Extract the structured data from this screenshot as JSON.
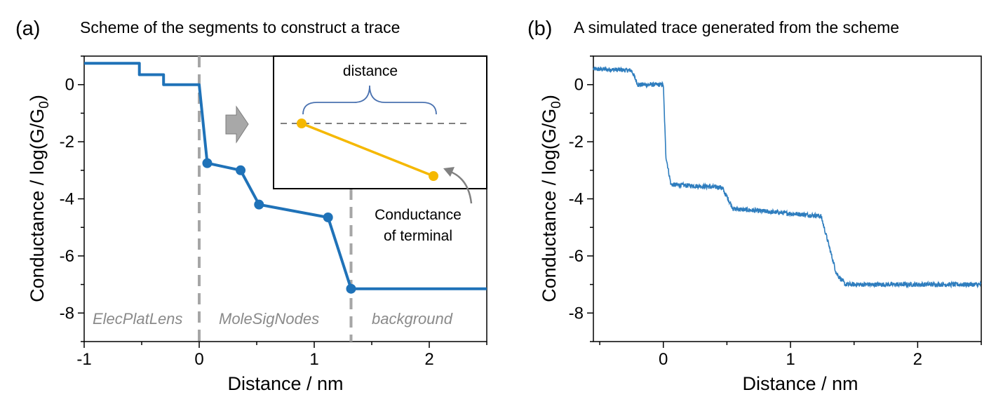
{
  "chart_data": [
    {
      "type": "line",
      "panel_label": "(a)",
      "title": "Scheme of the segments to construct a trace",
      "xlabel": "Distance / nm",
      "ylabel_main": "Conductance / log(G/G",
      "ylabel_sub": "0",
      "ylabel_end": ")",
      "xlim": [
        -1,
        2.5
      ],
      "ylim": [
        -9,
        1
      ],
      "xticks": [
        -1,
        0,
        1,
        2
      ],
      "yticks": [
        0,
        -2,
        -4,
        -6,
        -8
      ],
      "series": [
        {
          "color": "#1f72b8",
          "x": [
            -1.0,
            -0.52,
            -0.52,
            -0.31,
            -0.31,
            0.0,
            0.0,
            0.07,
            0.36,
            0.52,
            1.12,
            1.32,
            2.5
          ],
          "y": [
            0.75,
            0.75,
            0.35,
            0.35,
            0.0,
            0.0,
            0.0,
            -2.75,
            -3.0,
            -4.2,
            -4.65,
            -7.15,
            -7.15
          ]
        }
      ],
      "markers": {
        "x": [
          0.07,
          0.36,
          0.52,
          1.12,
          1.32
        ],
        "y": [
          -2.75,
          -3.0,
          -4.2,
          -4.65,
          -7.15
        ]
      },
      "dividers_x": [
        0.0,
        1.32
      ],
      "region_labels": [
        "ElecPlatLens",
        "MoleSigNodes",
        "background"
      ],
      "inset": {
        "label": "distance",
        "line_color": "#f5b800"
      },
      "annotation": [
        "Conductance",
        "of terminal"
      ]
    },
    {
      "type": "line",
      "panel_label": "(b)",
      "title": "A simulated trace generated from the scheme",
      "xlabel": "Distance / nm",
      "ylabel_main": "Conductance / log(G/G",
      "ylabel_sub": "0",
      "ylabel_end": ")",
      "xlim": [
        -0.55,
        2.5
      ],
      "ylim": [
        -9,
        1
      ],
      "xticks": [
        0,
        1,
        2
      ],
      "yticks": [
        0,
        -2,
        -4,
        -6,
        -8
      ],
      "series": [
        {
          "color": "#2e7dbe",
          "profile": [
            [
              -0.55,
              0.55
            ],
            [
              -0.25,
              0.5
            ],
            [
              -0.2,
              0.0
            ],
            [
              0.0,
              0.0
            ],
            [
              0.02,
              -2.5
            ],
            [
              0.06,
              -3.5
            ],
            [
              0.46,
              -3.6
            ],
            [
              0.55,
              -4.35
            ],
            [
              1.24,
              -4.6
            ],
            [
              1.36,
              -6.6
            ],
            [
              1.43,
              -7.0
            ],
            [
              2.5,
              -7.0
            ]
          ],
          "noise_amplitude": 0.08
        }
      ]
    }
  ]
}
